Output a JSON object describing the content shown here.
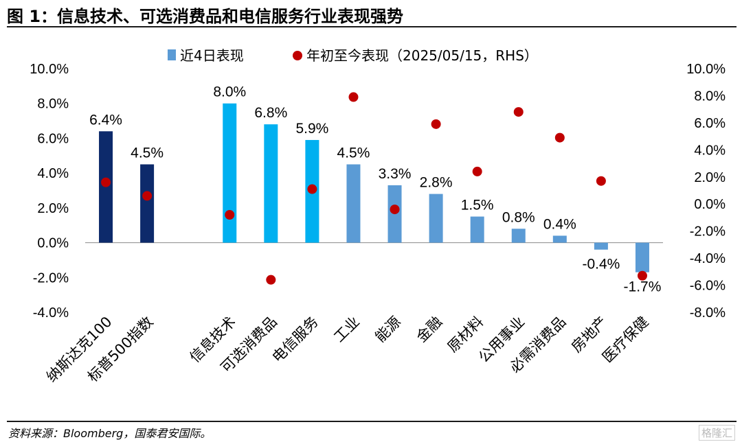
{
  "title": "图 1：信息技术、可选消费品和电信服务行业表现强势",
  "source": "资料来源：Bloomberg，国泰君安国际。",
  "watermark": "格隆汇",
  "chart_data": {
    "type": "bar",
    "legend": [
      "近4日表现",
      "年初至今表现（2025/05/15，RHS）"
    ],
    "legend_position": "top",
    "categories": [
      "纳斯达克100",
      "标普500指数",
      "",
      "信息技术",
      "可选消费品",
      "电信服务",
      "工业",
      "能源",
      "金融",
      "原材料",
      "公用事业",
      "必需消费品",
      "房地产",
      "医疗保健"
    ],
    "series": [
      {
        "name": "近4日表现",
        "type": "bar",
        "axis": "left",
        "values": [
          6.4,
          4.5,
          null,
          8.0,
          6.8,
          5.9,
          4.5,
          3.3,
          2.8,
          1.5,
          0.8,
          0.4,
          -0.4,
          -1.7
        ],
        "labels": [
          "6.4%",
          "4.5%",
          "",
          "8.0%",
          "6.8%",
          "5.9%",
          "4.5%",
          "3.3%",
          "2.8%",
          "1.5%",
          "0.8%",
          "0.4%",
          "-0.4%",
          "-1.7%"
        ],
        "colors": [
          "#0d2a6b",
          "#0d2a6b",
          "",
          "#00b0f0",
          "#00b0f0",
          "#00b0f0",
          "#5b9bd5",
          "#5b9bd5",
          "#5b9bd5",
          "#5b9bd5",
          "#5b9bd5",
          "#5b9bd5",
          "#5b9bd5",
          "#5b9bd5"
        ]
      },
      {
        "name": "年初至今表现（2025/05/15，RHS）",
        "type": "scatter",
        "axis": "right",
        "color": "#c00000",
        "values": [
          1.6,
          0.6,
          null,
          -0.8,
          -5.6,
          1.1,
          7.9,
          -0.4,
          5.9,
          2.4,
          6.8,
          4.9,
          1.7,
          -5.3
        ]
      }
    ],
    "left_axis": {
      "ylim": [
        -4,
        10
      ],
      "ticks": [
        "10.0%",
        "8.0%",
        "6.0%",
        "4.0%",
        "2.0%",
        "0.0%",
        "-2.0%",
        "-4.0%"
      ]
    },
    "right_axis": {
      "ylim": [
        -8,
        10
      ],
      "ticks": [
        "10.0%",
        "8.0%",
        "6.0%",
        "4.0%",
        "2.0%",
        "0.0%",
        "-2.0%",
        "-4.0%",
        "-6.0%",
        "-8.0%"
      ]
    },
    "grid": false
  }
}
